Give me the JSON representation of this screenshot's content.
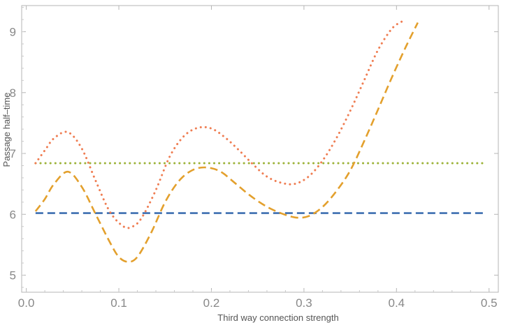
{
  "chart_data": {
    "type": "line",
    "xlabel": "Third way connection strength",
    "ylabel": "Passage half–time",
    "xlim": [
      -0.005,
      0.51
    ],
    "ylim": [
      4.72,
      9.43
    ],
    "x_ticks": [
      "0.0",
      "0.1",
      "0.2",
      "0.3",
      "0.4",
      "0.5"
    ],
    "y_ticks": [
      "5",
      "6",
      "7",
      "8",
      "9"
    ],
    "grid": false,
    "legend": "none",
    "series": [
      {
        "style": "dashed",
        "color": "#3d6eb0",
        "x": [
          0.01,
          0.495
        ],
        "y": [
          6.02,
          6.02
        ]
      },
      {
        "style": "dotted",
        "color": "#9db33a",
        "x": [
          0.01,
          0.495
        ],
        "y": [
          6.84,
          6.84
        ]
      },
      {
        "style": "dashed",
        "color": "#e3a02d",
        "x": [
          0.01,
          0.02,
          0.03,
          0.045,
          0.06,
          0.075,
          0.09,
          0.1,
          0.11,
          0.12,
          0.135,
          0.15,
          0.165,
          0.18,
          0.195,
          0.21,
          0.225,
          0.24,
          0.255,
          0.27,
          0.29,
          0.305,
          0.32,
          0.335,
          0.35,
          0.365,
          0.38,
          0.395,
          0.41,
          0.423
        ],
        "y": [
          6.05,
          6.25,
          6.5,
          6.7,
          6.45,
          6.0,
          5.55,
          5.3,
          5.22,
          5.3,
          5.7,
          6.2,
          6.55,
          6.73,
          6.77,
          6.7,
          6.52,
          6.33,
          6.17,
          6.05,
          5.95,
          5.97,
          6.12,
          6.38,
          6.72,
          7.2,
          7.72,
          8.25,
          8.75,
          9.15
        ]
      },
      {
        "style": "dotted",
        "color": "#ef7d52",
        "x": [
          0.01,
          0.02,
          0.03,
          0.045,
          0.06,
          0.075,
          0.09,
          0.105,
          0.115,
          0.125,
          0.14,
          0.155,
          0.17,
          0.185,
          0.2,
          0.215,
          0.23,
          0.245,
          0.26,
          0.275,
          0.29,
          0.305,
          0.32,
          0.335,
          0.35,
          0.365,
          0.38,
          0.395,
          0.406
        ],
        "y": [
          6.84,
          7.05,
          7.25,
          7.35,
          7.08,
          6.55,
          6.05,
          5.8,
          5.8,
          5.95,
          6.4,
          6.95,
          7.28,
          7.42,
          7.41,
          7.26,
          7.05,
          6.82,
          6.62,
          6.52,
          6.5,
          6.62,
          6.88,
          7.25,
          7.7,
          8.2,
          8.7,
          9.05,
          9.17
        ]
      }
    ]
  }
}
